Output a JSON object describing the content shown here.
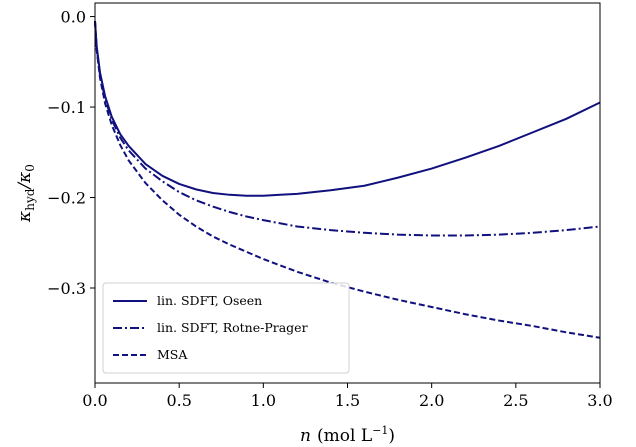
{
  "chart_data": {
    "type": "line",
    "xlabel_var": "n",
    "xlabel_unit": "(mol L",
    "xlabel_unit_exp": "−1",
    "xlabel_unit_close": ")",
    "ylabel_main": "κ",
    "ylabel_sub": "hyd",
    "ylabel_slash": "/κ",
    "ylabel_sub0": "0",
    "xlim": [
      0.0,
      3.0
    ],
    "ylim": [
      -0.405,
      0.015
    ],
    "xticks": [
      0.0,
      0.5,
      1.0,
      1.5,
      2.0,
      2.5,
      3.0
    ],
    "xtick_labels": [
      "0.0",
      "0.5",
      "1.0",
      "1.5",
      "2.0",
      "2.5",
      "3.0"
    ],
    "yticks": [
      0.0,
      -0.1,
      -0.2,
      -0.3
    ],
    "ytick_labels": [
      "0.0",
      "−0.1",
      "−0.2",
      "−0.3"
    ],
    "grid": false,
    "legend_position": "lower-left",
    "line_color": "#10107e",
    "series": [
      {
        "name": "lin. SDFT, Oseen",
        "dash": "solid",
        "x": [
          0.0,
          0.01,
          0.03,
          0.06,
          0.1,
          0.15,
          0.2,
          0.3,
          0.4,
          0.5,
          0.6,
          0.7,
          0.8,
          0.9,
          1.0,
          1.1,
          1.2,
          1.4,
          1.6,
          1.8,
          2.0,
          2.2,
          2.4,
          2.6,
          2.8,
          3.0
        ],
        "y": [
          -0.005,
          -0.033,
          -0.062,
          -0.088,
          -0.111,
          -0.13,
          -0.143,
          -0.163,
          -0.176,
          -0.185,
          -0.191,
          -0.195,
          -0.197,
          -0.198,
          -0.198,
          -0.197,
          -0.196,
          -0.192,
          -0.187,
          -0.178,
          -0.168,
          -0.156,
          -0.143,
          -0.128,
          -0.113,
          -0.095
        ]
      },
      {
        "name": "lin. SDFT, Rotne-Prager",
        "dash": "dashdot",
        "x": [
          0.0,
          0.01,
          0.03,
          0.06,
          0.1,
          0.15,
          0.2,
          0.3,
          0.4,
          0.5,
          0.6,
          0.7,
          0.8,
          0.9,
          1.0,
          1.2,
          1.4,
          1.6,
          1.8,
          2.0,
          2.2,
          2.4,
          2.6,
          2.8,
          3.0
        ],
        "y": [
          -0.005,
          -0.035,
          -0.065,
          -0.091,
          -0.114,
          -0.134,
          -0.148,
          -0.168,
          -0.182,
          -0.194,
          -0.203,
          -0.21,
          -0.216,
          -0.221,
          -0.225,
          -0.232,
          -0.236,
          -0.239,
          -0.241,
          -0.242,
          -0.242,
          -0.241,
          -0.239,
          -0.236,
          -0.232
        ]
      },
      {
        "name": "MSA",
        "dash": "dashed",
        "x": [
          0.0,
          0.01,
          0.03,
          0.06,
          0.1,
          0.15,
          0.2,
          0.3,
          0.4,
          0.5,
          0.6,
          0.7,
          0.8,
          1.0,
          1.2,
          1.4,
          1.6,
          1.8,
          2.0,
          2.2,
          2.4,
          2.6,
          2.8,
          3.0
        ],
        "y": [
          -0.005,
          -0.037,
          -0.068,
          -0.096,
          -0.12,
          -0.142,
          -0.159,
          -0.184,
          -0.203,
          -0.219,
          -0.232,
          -0.243,
          -0.252,
          -0.268,
          -0.282,
          -0.294,
          -0.304,
          -0.313,
          -0.321,
          -0.329,
          -0.336,
          -0.342,
          -0.349,
          -0.355
        ]
      }
    ]
  }
}
